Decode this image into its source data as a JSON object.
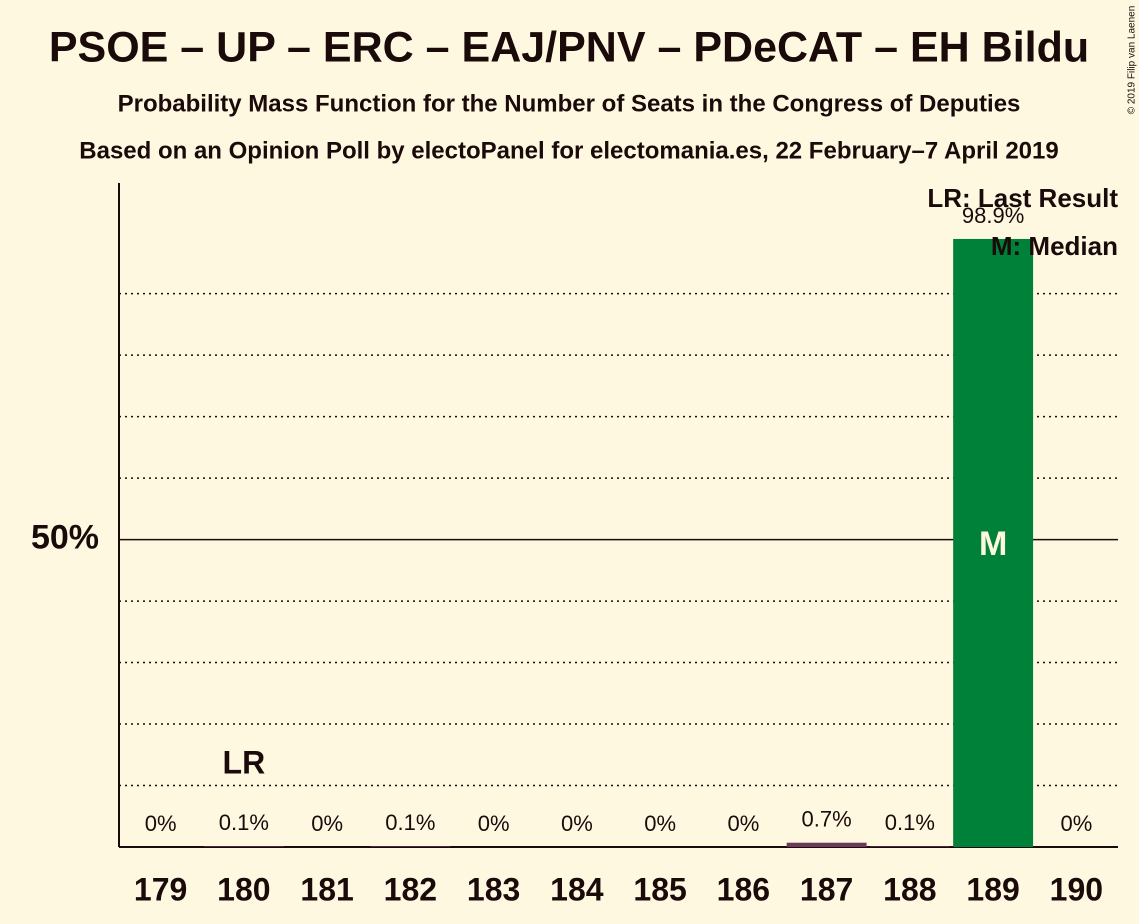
{
  "chart_data": {
    "type": "bar",
    "title": "PSOE – UP – ERC – EAJ/PNV – PDeCAT – EH Bildu",
    "subtitle": "Probability Mass Function for the Number of Seats in the Congress of Deputies",
    "subtitle2": "Based on an Opinion Poll by electoPanel for electomania.es, 22 February–7 April 2019",
    "categories": [
      "179",
      "180",
      "181",
      "182",
      "183",
      "184",
      "185",
      "186",
      "187",
      "188",
      "189",
      "190"
    ],
    "values": [
      0,
      0.1,
      0,
      0.1,
      0,
      0,
      0,
      0,
      0.7,
      0.1,
      98.9,
      0
    ],
    "value_labels": [
      "0%",
      "0.1%",
      "0%",
      "0.1%",
      "0%",
      "0%",
      "0%",
      "0%",
      "0.7%",
      "0.1%",
      "98.9%",
      "0%"
    ],
    "colors": [
      "#6b3a5a",
      "#6b3a5a",
      "#6b3a5a",
      "#6b3a5a",
      "#6b3a5a",
      "#6b3a5a",
      "#6b3a5a",
      "#6b3a5a",
      "#6b3a5a",
      "#6b3a5a",
      "#008139",
      "#6b3a5a"
    ],
    "ylim": [
      0,
      108
    ],
    "yticks": [
      {
        "value": 50,
        "label": "50%"
      }
    ],
    "minor_yticks": [
      10,
      20,
      30,
      40,
      60,
      70,
      80,
      90
    ],
    "grid": true,
    "last_result": {
      "category": "180",
      "label": "LR"
    },
    "median": {
      "category": "189",
      "label": "M"
    },
    "legend": [
      "LR: Last Result",
      "M: Median"
    ],
    "legend_position": "upper right",
    "credit": "© 2019 Filip van Laenen"
  }
}
